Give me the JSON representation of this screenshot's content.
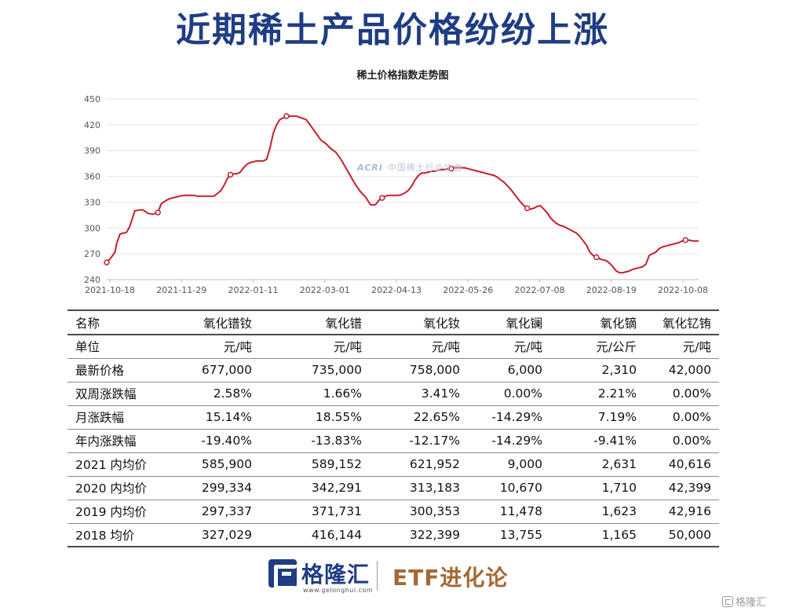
{
  "headline": "近期稀土产品价格纷纷上涨",
  "chart_data": {
    "type": "line",
    "title": "稀土价格指数走势图",
    "ylim": [
      240,
      450
    ],
    "yticks": [
      240,
      270,
      300,
      330,
      360,
      390,
      420,
      450
    ],
    "x_tick_labels": [
      "2021-10-18",
      "2021-11-29",
      "2022-01-11",
      "2022-03-01",
      "2022-04-13",
      "2022-05-26",
      "2022-07-08",
      "2022-08-19",
      "2022-10-08"
    ],
    "grid": "horizontal",
    "color": "#c4202d",
    "series": [
      {
        "x": [
          0,
          2,
          3.5,
          5,
          6,
          8,
          10,
          12,
          14,
          17,
          20,
          22,
          25,
          28,
          31,
          33,
          36,
          38,
          40,
          42,
          44,
          47,
          50,
          53,
          55,
          57,
          59,
          61,
          63,
          65,
          67,
          69,
          71,
          73,
          75,
          77,
          79,
          81,
          83,
          85,
          87,
          89,
          91,
          93,
          95,
          97,
          99,
          101,
          103,
          105,
          107,
          109,
          111,
          113,
          115,
          118,
          121,
          124,
          127,
          130,
          133,
          136,
          139,
          142,
          145,
          148,
          151,
          154,
          157,
          160,
          163,
          165,
          167,
          169,
          171,
          173,
          175,
          177,
          179,
          181,
          183,
          185,
          187,
          189,
          191,
          193,
          195,
          197,
          199,
          201,
          203,
          205,
          207,
          209,
          211,
          213,
          215,
          217,
          219,
          221,
          223,
          225,
          227,
          229,
          231,
          233,
          235,
          237,
          239,
          241,
          243,
          245,
          247,
          249,
          251,
          253,
          255,
          257,
          259,
          261,
          263,
          265,
          267,
          269,
          271,
          273,
          275,
          277,
          279,
          281,
          283,
          285,
          287,
          289,
          291,
          293,
          295,
          297,
          299,
          301,
          303,
          305,
          307,
          309,
          311,
          313,
          315,
          317,
          319,
          321,
          323,
          325,
          327,
          329,
          331,
          333,
          335,
          337,
          339,
          341,
          343,
          345,
          347,
          349,
          351,
          353,
          355,
          357,
          359
        ],
        "y": [
          260,
          264,
          268,
          272,
          282,
          293,
          294,
          295,
          302,
          320,
          321,
          321,
          317,
          316,
          318,
          328,
          332,
          334,
          335,
          336,
          337,
          338,
          338,
          338,
          337,
          337,
          337,
          337,
          337,
          337,
          340,
          343,
          349,
          357,
          362,
          363,
          363,
          365,
          370,
          374,
          376,
          377,
          378,
          378,
          378,
          380,
          393,
          410,
          420,
          426,
          428,
          430,
          430,
          430,
          430,
          428,
          426,
          418,
          410,
          402,
          398,
          392,
          388,
          380,
          370,
          360,
          350,
          342,
          336,
          327,
          327,
          332,
          335,
          337,
          338,
          338,
          338,
          338,
          339,
          341,
          344,
          349,
          356,
          361,
          364,
          364,
          365,
          366,
          366,
          367,
          368,
          368,
          369,
          369,
          370,
          370,
          370,
          370,
          369,
          368,
          367,
          366,
          365,
          364,
          363,
          362,
          361,
          359,
          356,
          353,
          349,
          345,
          340,
          335,
          330,
          326,
          323,
          322,
          323,
          325,
          326,
          322,
          318,
          312,
          308,
          305,
          303,
          302,
          300,
          298,
          296,
          294,
          290,
          285,
          280,
          272,
          268,
          266,
          264,
          263,
          262,
          259,
          255,
          250,
          248,
          248,
          249,
          250,
          252,
          253,
          254,
          255,
          258,
          268,
          270,
          272,
          276,
          278,
          279,
          280,
          281,
          282,
          283,
          285,
          286,
          286,
          285,
          285,
          285
        ]
      }
    ]
  },
  "watermark": {
    "mark": "ACRI",
    "text": "中国稀土行业协会"
  },
  "table": {
    "headers": [
      "名称",
      "氧化镨钕",
      "氧化镨",
      "氧化钕",
      "氧化镧",
      "氧化镝",
      "氧化钇铕"
    ],
    "rows": [
      [
        "单位",
        "元/吨",
        "元/吨",
        "元/吨",
        "元/吨",
        "元/公斤",
        "元/吨"
      ],
      [
        "最新价格",
        "677,000",
        "735,000",
        "758,000",
        "6,000",
        "2,310",
        "42,000"
      ],
      [
        "双周涨跌幅",
        "2.58%",
        "1.66%",
        "3.41%",
        "0.00%",
        "2.21%",
        "0.00%"
      ],
      [
        "月涨跌幅",
        "15.14%",
        "18.55%",
        "22.65%",
        "-14.29%",
        "7.19%",
        "0.00%"
      ],
      [
        "年内涨跌幅",
        "-19.40%",
        "-13.83%",
        "-12.17%",
        "-14.29%",
        "-9.41%",
        "0.00%"
      ],
      [
        "2021 内均价",
        "585,900",
        "589,152",
        "621,952",
        "9,000",
        "2,631",
        "40,616"
      ],
      [
        "2020 内均价",
        "299,334",
        "342,291",
        "313,183",
        "10,670",
        "1,710",
        "42,399"
      ],
      [
        "2019 内均价",
        "297,337",
        "371,731",
        "300,353",
        "11,478",
        "1,623",
        "42,916"
      ],
      [
        "2018 均价",
        "327,029",
        "416,144",
        "322,399",
        "13,755",
        "1,165",
        "50,000"
      ]
    ]
  },
  "footer": {
    "brand": "格隆汇",
    "url": "www.gelonghui.com",
    "partner": "ETF进化论",
    "corner": "格隆汇"
  }
}
